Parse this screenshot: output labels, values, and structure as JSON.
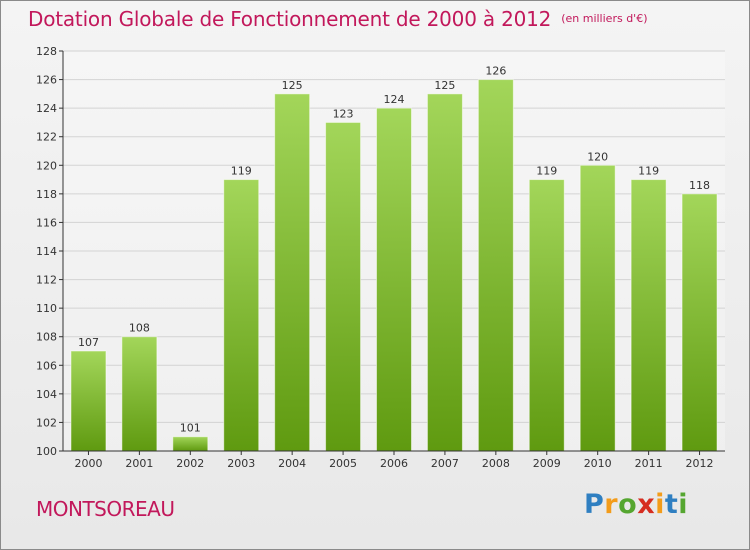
{
  "title": "Dotation Globale de Fonctionnement de 2000 à 2012",
  "unit_note": "(en milliers d'€)",
  "commune": "MONTSOREAU",
  "logo": {
    "letters": [
      "P",
      "r",
      "o",
      "x",
      "i",
      "t",
      "i"
    ],
    "text": "Proxiti"
  },
  "colors": {
    "title": "#c2185b",
    "bar_light": "#a3d65a",
    "bar_dark": "#5f9a10",
    "grid": "#d3d3d3",
    "axis": "#333333"
  },
  "chart_data": {
    "type": "bar",
    "categories": [
      "2000",
      "2001",
      "2002",
      "2003",
      "2004",
      "2005",
      "2006",
      "2007",
      "2008",
      "2009",
      "2010",
      "2011",
      "2012"
    ],
    "values": [
      107,
      108,
      101,
      119,
      125,
      123,
      124,
      125,
      126,
      119,
      120,
      119,
      118
    ],
    "y_ticks": [
      "100",
      "102",
      "104",
      "106",
      "108",
      "110",
      "112",
      "114",
      "116",
      "118",
      "120",
      "122",
      "124",
      "126",
      "128"
    ],
    "ylim": [
      100,
      128
    ],
    "grid": true,
    "title": "Dotation Globale de Fonctionnement de 2000 à 2012",
    "xlabel": "",
    "ylabel": ""
  }
}
